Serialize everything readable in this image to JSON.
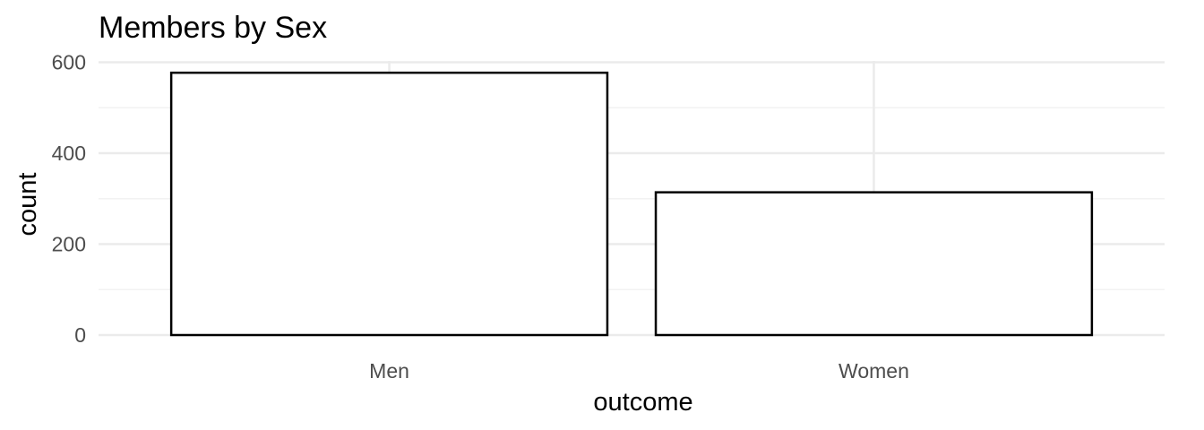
{
  "chart_data": {
    "type": "bar",
    "title": "Members by Sex",
    "xlabel": "outcome",
    "ylabel": "count",
    "categories": [
      "Men",
      "Women"
    ],
    "values": [
      577,
      314
    ],
    "ylim": [
      0,
      600
    ],
    "yticks": [
      0,
      200,
      400,
      600
    ],
    "ytick_labels": [
      "0",
      "200",
      "400",
      "600"
    ],
    "grid": true,
    "legend": "none",
    "colors": {
      "bar_fill": "#ffffff",
      "bar_stroke": "#000000",
      "grid_major": "#ebebeb",
      "grid_minor": "#f2f2f2",
      "tick_text": "#4d4d4d"
    }
  }
}
